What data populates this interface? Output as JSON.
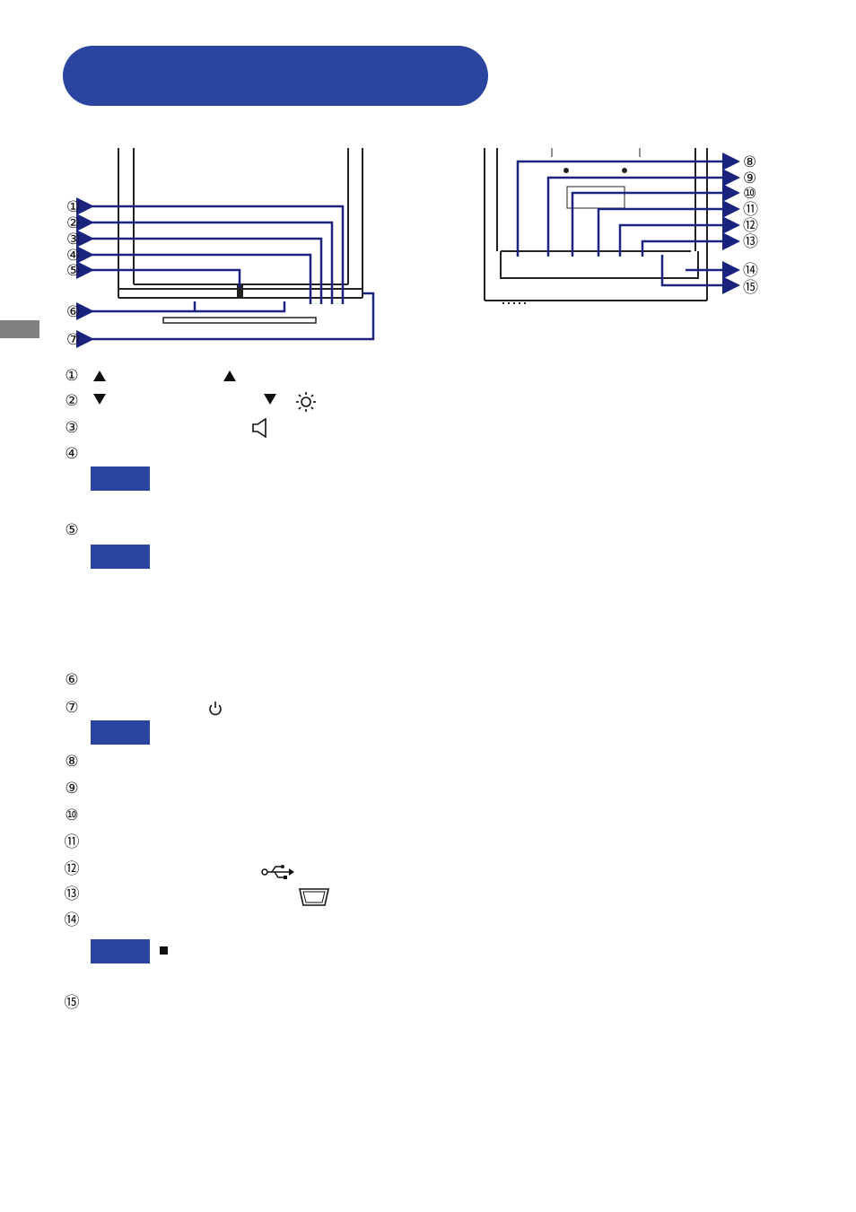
{
  "callouts_front": [
    "①",
    "②",
    "③",
    "④",
    "⑤",
    "⑥",
    "⑦"
  ],
  "callouts_back": [
    "⑧",
    "⑨",
    "⑩",
    "⑪",
    "⑫",
    "⑬",
    "⑭",
    "⑮"
  ],
  "list_numbers": [
    "①",
    "②",
    "③",
    "④",
    "⑤",
    "⑥",
    "⑦",
    "⑧",
    "⑨",
    "⑩",
    "⑪",
    "⑫",
    "⑬",
    "⑭",
    "⑮"
  ],
  "colors": {
    "accent": "#2b44a0",
    "side_tab": "#808080",
    "arrow": "#1a237e"
  },
  "icons": [
    "up-triangle-icon",
    "down-triangle-icon",
    "brightness-icon",
    "speaker-icon",
    "power-icon",
    "usb-icon",
    "vga-connector-icon",
    "square-bullet-icon"
  ]
}
